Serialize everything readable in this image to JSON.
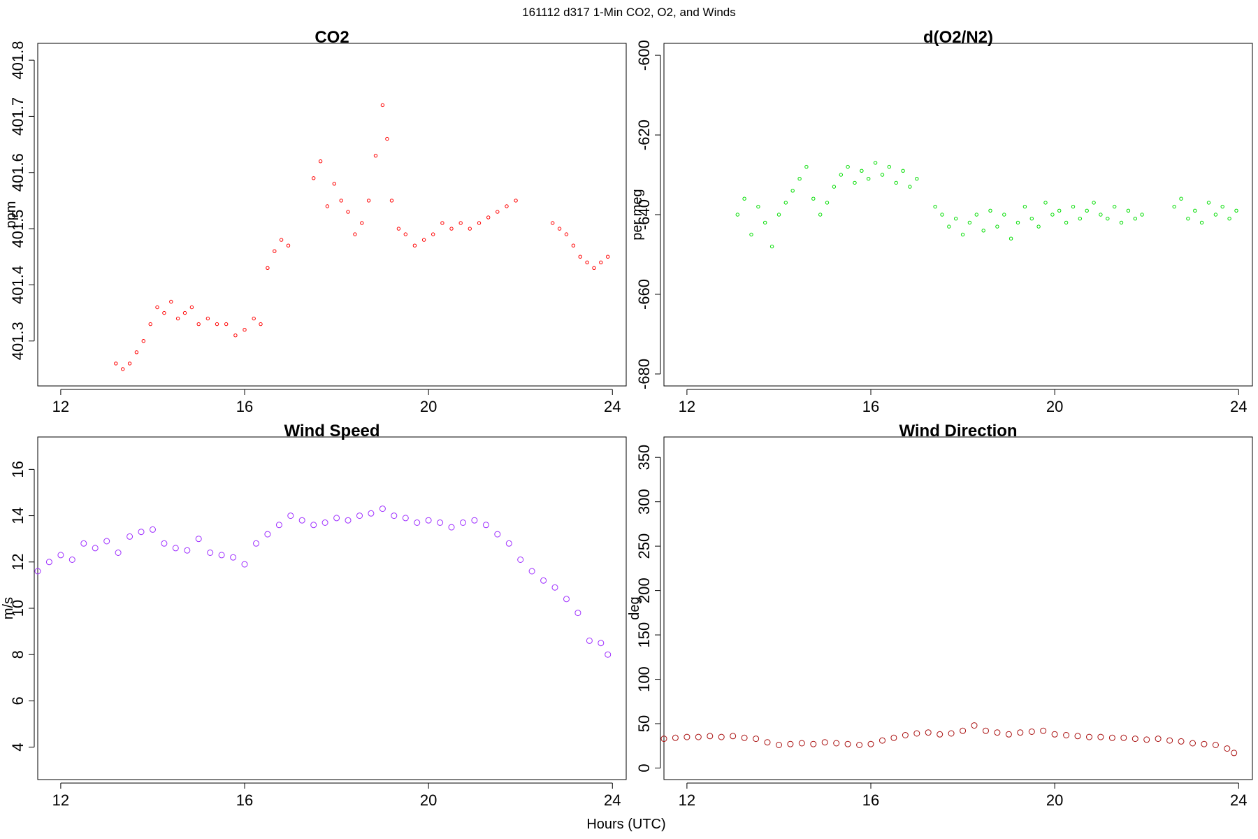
{
  "figure": {
    "title": "161112   d317   1-Min CO2, O2, and Winds",
    "xlabel": "Hours (UTC)"
  },
  "chart_data": [
    {
      "id": "co2",
      "type": "scatter",
      "title": "CO2",
      "xlabel": "",
      "ylabel": "ppm",
      "xlim": [
        11.5,
        24.3
      ],
      "ylim": [
        401.22,
        401.83
      ],
      "xticks": [
        12,
        16,
        20,
        24
      ],
      "yticks": [
        401.3,
        401.4,
        401.5,
        401.6,
        401.7,
        401.8
      ],
      "ytick_labels": [
        "401.3",
        "401.4",
        "401.5",
        "401.6",
        "401.7",
        "401.8"
      ],
      "color": "#ff0000",
      "marker_radius": 2.2,
      "grid": false,
      "series": [
        {
          "x": [
            13.2,
            13.35,
            13.5,
            13.65,
            13.8,
            13.95,
            14.1,
            14.25,
            14.4,
            14.55,
            14.7,
            14.85,
            15.0,
            15.2,
            15.4,
            15.6,
            15.8,
            16.0,
            16.2,
            16.35,
            16.5,
            16.65,
            16.8,
            16.95,
            17.5,
            17.65,
            17.8,
            17.95,
            18.1,
            18.25,
            18.4,
            18.55,
            18.7,
            18.85,
            19.0,
            19.1,
            19.2,
            19.35,
            19.5,
            19.7,
            19.9,
            20.1,
            20.3,
            20.5,
            20.7,
            20.9,
            21.1,
            21.3,
            21.5,
            21.7,
            21.9,
            22.7,
            22.85,
            23.0,
            23.15,
            23.3,
            23.45,
            23.6,
            23.75,
            23.9
          ],
          "y": [
            401.26,
            401.25,
            401.26,
            401.28,
            401.3,
            401.33,
            401.36,
            401.35,
            401.37,
            401.34,
            401.35,
            401.36,
            401.33,
            401.34,
            401.33,
            401.33,
            401.31,
            401.32,
            401.34,
            401.33,
            401.43,
            401.46,
            401.48,
            401.47,
            401.59,
            401.62,
            401.54,
            401.58,
            401.55,
            401.53,
            401.49,
            401.51,
            401.55,
            401.63,
            401.72,
            401.66,
            401.55,
            401.5,
            401.49,
            401.47,
            401.48,
            401.49,
            401.51,
            401.5,
            401.51,
            401.5,
            401.51,
            401.52,
            401.53,
            401.54,
            401.55,
            401.51,
            401.5,
            401.49,
            401.47,
            401.45,
            401.44,
            401.43,
            401.44,
            401.45
          ]
        }
      ]
    },
    {
      "id": "o2",
      "type": "scatter",
      "title": "d(O2/N2)",
      "xlabel": "",
      "ylabel": "per meg",
      "xlim": [
        11.5,
        24.3
      ],
      "ylim": [
        -683,
        -597
      ],
      "xticks": [
        12,
        16,
        20,
        24
      ],
      "yticks": [
        -680,
        -660,
        -640,
        -620,
        -600
      ],
      "ytick_labels": [
        "-680",
        "-660",
        "-640",
        "-620",
        "-600"
      ],
      "color": "#00dd00",
      "marker_radius": 2.2,
      "grid": false,
      "series": [
        {
          "x": [
            13.1,
            13.25,
            13.4,
            13.55,
            13.7,
            13.85,
            14.0,
            14.15,
            14.3,
            14.45,
            14.6,
            14.75,
            14.9,
            15.05,
            15.2,
            15.35,
            15.5,
            15.65,
            15.8,
            15.95,
            16.1,
            16.25,
            16.4,
            16.55,
            16.7,
            16.85,
            17.0,
            17.4,
            17.55,
            17.7,
            17.85,
            18.0,
            18.15,
            18.3,
            18.45,
            18.6,
            18.75,
            18.9,
            19.05,
            19.2,
            19.35,
            19.5,
            19.65,
            19.8,
            19.95,
            20.1,
            20.25,
            20.4,
            20.55,
            20.7,
            20.85,
            21.0,
            21.15,
            21.3,
            21.45,
            21.6,
            21.75,
            21.9,
            22.6,
            22.75,
            22.9,
            23.05,
            23.2,
            23.35,
            23.5,
            23.65,
            23.8,
            23.95
          ],
          "y": [
            -640,
            -636,
            -645,
            -638,
            -642,
            -648,
            -640,
            -637,
            -634,
            -631,
            -628,
            -636,
            -640,
            -637,
            -633,
            -630,
            -628,
            -632,
            -629,
            -631,
            -627,
            -630,
            -628,
            -632,
            -629,
            -633,
            -631,
            -638,
            -640,
            -643,
            -641,
            -645,
            -642,
            -640,
            -644,
            -639,
            -643,
            -640,
            -646,
            -642,
            -638,
            -641,
            -643,
            -637,
            -640,
            -639,
            -642,
            -638,
            -641,
            -639,
            -637,
            -640,
            -641,
            -638,
            -642,
            -639,
            -641,
            -640,
            -638,
            -636,
            -641,
            -639,
            -642,
            -637,
            -640,
            -638,
            -641,
            -639
          ]
        }
      ]
    },
    {
      "id": "wspd",
      "type": "scatter",
      "title": "Wind Speed",
      "xlabel": "",
      "ylabel": "m/s",
      "xlim": [
        11.5,
        24.3
      ],
      "ylim": [
        2.6,
        17.4
      ],
      "xticks": [
        12,
        16,
        20,
        24
      ],
      "yticks": [
        4,
        6,
        8,
        10,
        12,
        14,
        16
      ],
      "ytick_labels": [
        "4",
        "6",
        "8",
        "10",
        "12",
        "14",
        "16"
      ],
      "color": "#9f30ff",
      "marker_radius": 4,
      "grid": false,
      "series": [
        {
          "x": [
            11.5,
            11.75,
            12.0,
            12.25,
            12.5,
            12.75,
            13.0,
            13.25,
            13.5,
            13.75,
            14.0,
            14.25,
            14.5,
            14.75,
            15.0,
            15.25,
            15.5,
            15.75,
            16.0,
            16.25,
            16.5,
            16.75,
            17.0,
            17.25,
            17.5,
            17.75,
            18.0,
            18.25,
            18.5,
            18.75,
            19.0,
            19.25,
            19.5,
            19.75,
            20.0,
            20.25,
            20.5,
            20.75,
            21.0,
            21.25,
            21.5,
            21.75,
            22.0,
            22.25,
            22.5,
            22.75,
            23.0,
            23.25,
            23.5,
            23.75,
            23.9
          ],
          "y": [
            11.6,
            12.0,
            12.3,
            12.1,
            12.8,
            12.6,
            12.9,
            12.4,
            13.1,
            13.3,
            13.4,
            12.8,
            12.6,
            12.5,
            13.0,
            12.4,
            12.3,
            12.2,
            11.9,
            12.8,
            13.2,
            13.6,
            14.0,
            13.8,
            13.6,
            13.7,
            13.9,
            13.8,
            14.0,
            14.1,
            14.3,
            14.0,
            13.9,
            13.7,
            13.8,
            13.7,
            13.5,
            13.7,
            13.8,
            13.6,
            13.2,
            12.8,
            12.1,
            11.6,
            11.2,
            10.9,
            10.4,
            9.8,
            8.6,
            8.5,
            8.0
          ]
        }
      ]
    },
    {
      "id": "wdir",
      "type": "scatter",
      "title": "Wind Direction",
      "xlabel": "",
      "ylabel": "deg",
      "xlim": [
        11.5,
        24.3
      ],
      "ylim": [
        -13,
        373
      ],
      "xticks": [
        12,
        16,
        20,
        24
      ],
      "yticks": [
        0,
        50,
        100,
        150,
        200,
        250,
        300,
        350
      ],
      "ytick_labels": [
        "0",
        "50",
        "100",
        "150",
        "200",
        "250",
        "300",
        "350"
      ],
      "color": "#aa1111",
      "marker_radius": 4,
      "grid": false,
      "series": [
        {
          "x": [
            11.5,
            11.75,
            12.0,
            12.25,
            12.5,
            12.75,
            13.0,
            13.25,
            13.5,
            13.75,
            14.0,
            14.25,
            14.5,
            14.75,
            15.0,
            15.25,
            15.5,
            15.75,
            16.0,
            16.25,
            16.5,
            16.75,
            17.0,
            17.25,
            17.5,
            17.75,
            18.0,
            18.25,
            18.5,
            18.75,
            19.0,
            19.25,
            19.5,
            19.75,
            20.0,
            20.25,
            20.5,
            20.75,
            21.0,
            21.25,
            21.5,
            21.75,
            22.0,
            22.25,
            22.5,
            22.75,
            23.0,
            23.25,
            23.5,
            23.75,
            23.9
          ],
          "y": [
            33,
            34,
            35,
            35,
            36,
            35,
            36,
            34,
            33,
            29,
            26,
            27,
            28,
            27,
            29,
            28,
            27,
            26,
            27,
            31,
            34,
            37,
            39,
            40,
            38,
            39,
            42,
            48,
            42,
            40,
            38,
            40,
            41,
            42,
            38,
            37,
            36,
            35,
            35,
            34,
            34,
            33,
            32,
            33,
            31,
            30,
            28,
            27,
            26,
            22,
            17
          ]
        }
      ]
    }
  ]
}
